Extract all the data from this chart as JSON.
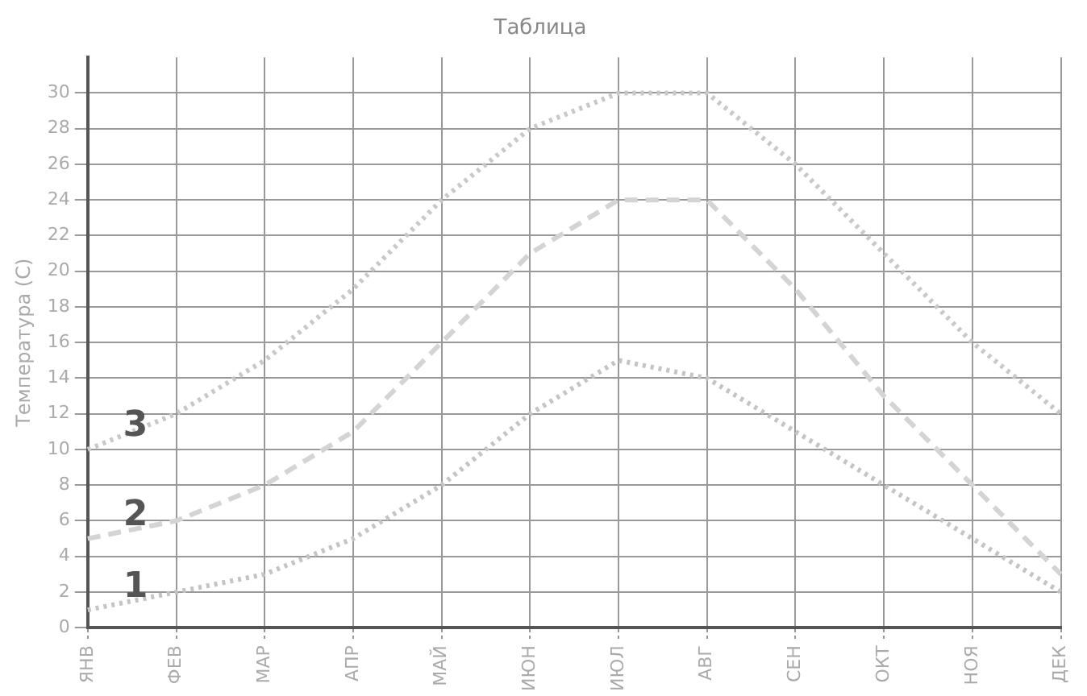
{
  "chart_data": {
    "type": "line",
    "title": "Таблица",
    "ylabel": "Температура (С)",
    "categories": [
      "ЯНВ",
      "ФЕВ",
      "МАР",
      "АПР",
      "МАЙ",
      "ИЮН",
      "ИЮЛ",
      "АВГ",
      "СЕН",
      "ОКТ",
      "НОЯ",
      "ДЕК"
    ],
    "series": [
      {
        "name": "1",
        "color": "#c4c4c4",
        "line_style": "dotted",
        "values": [
          1,
          2,
          3,
          5,
          8,
          12,
          15,
          14,
          11,
          8,
          5,
          2
        ]
      },
      {
        "name": "2",
        "color": "#d4d4d4",
        "line_style": "dashed",
        "values": [
          5,
          6,
          8,
          11,
          16,
          21,
          24,
          24,
          19,
          13,
          8,
          3
        ]
      },
      {
        "name": "3",
        "color": "#c8c8c8",
        "line_style": "dotted",
        "values": [
          10,
          12,
          15,
          19,
          24,
          28,
          30,
          30,
          26,
          21,
          16,
          12
        ]
      }
    ],
    "ylim": [
      0,
      32
    ],
    "yticks": [
      0,
      2,
      4,
      6,
      8,
      10,
      12,
      14,
      16,
      18,
      20,
      22,
      24,
      26,
      28,
      30
    ],
    "grid": true,
    "marker": "none",
    "legend": false
  }
}
